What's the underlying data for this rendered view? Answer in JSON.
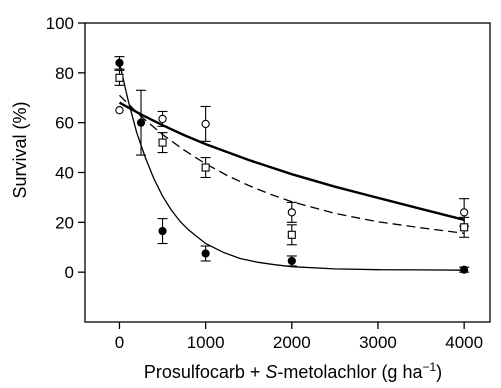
{
  "chart_data": {
    "type": "scatter",
    "title": "",
    "xlabel": "Prosulfocarb + S-metolachlor (g ha⁻¹)",
    "xlabel_parts": {
      "pre": "Prosulfocarb + ",
      "italic": "S",
      "mid": "-metolachlor (g ha",
      "sup": "−1",
      "post": ")"
    },
    "ylabel": "Survival (%)",
    "xlim": [
      -400,
      4300
    ],
    "ylim": [
      -20,
      100
    ],
    "xticks": [
      0,
      1000,
      2000,
      3000,
      4000
    ],
    "xtick_labels": [
      "0",
      "1000",
      "2000",
      "3000",
      "4000"
    ],
    "yticks": [
      0,
      20,
      40,
      60,
      80,
      100
    ],
    "ytick_labels": [
      "0",
      "20",
      "40",
      "60",
      "80",
      "100"
    ],
    "grid": false,
    "series": [
      {
        "marker": "filled-circle",
        "line_style": "solid-thin",
        "color": "#000000",
        "points": [
          {
            "x": 0,
            "y": 84,
            "err": 2.5
          },
          {
            "x": 250,
            "y": 60,
            "err": 13
          },
          {
            "x": 500,
            "y": 16.5,
            "err": 5
          },
          {
            "x": 1000,
            "y": 7.5,
            "err": 3
          },
          {
            "x": 2000,
            "y": 4.5,
            "err": 2
          },
          {
            "x": 4000,
            "y": 1,
            "err": 1
          }
        ],
        "fit_curve": [
          {
            "x": 0,
            "y": 84
          },
          {
            "x": 100,
            "y": 69
          },
          {
            "x": 200,
            "y": 56
          },
          {
            "x": 300,
            "y": 46
          },
          {
            "x": 400,
            "y": 37.5
          },
          {
            "x": 500,
            "y": 30.5
          },
          {
            "x": 600,
            "y": 25
          },
          {
            "x": 700,
            "y": 20.5
          },
          {
            "x": 800,
            "y": 17
          },
          {
            "x": 1000,
            "y": 11.5
          },
          {
            "x": 1200,
            "y": 8
          },
          {
            "x": 1400,
            "y": 5.5
          },
          {
            "x": 1600,
            "y": 4
          },
          {
            "x": 1800,
            "y": 3
          },
          {
            "x": 2000,
            "y": 2.2
          },
          {
            "x": 2500,
            "y": 1.3
          },
          {
            "x": 3000,
            "y": 1
          },
          {
            "x": 3500,
            "y": 0.9
          },
          {
            "x": 4000,
            "y": 0.8
          }
        ]
      },
      {
        "marker": "open-square",
        "line_style": "dashed",
        "color": "#000000",
        "points": [
          {
            "x": 0,
            "y": 78,
            "err": 3
          },
          {
            "x": 500,
            "y": 52,
            "err": 4
          },
          {
            "x": 1000,
            "y": 42,
            "err": 4
          },
          {
            "x": 2000,
            "y": 15,
            "err": 4
          },
          {
            "x": 4000,
            "y": 18,
            "err": 4
          }
        ],
        "fit_curve": [
          {
            "x": 0,
            "y": 71
          },
          {
            "x": 250,
            "y": 62.5
          },
          {
            "x": 500,
            "y": 55.2
          },
          {
            "x": 750,
            "y": 49
          },
          {
            "x": 1000,
            "y": 43.5
          },
          {
            "x": 1250,
            "y": 38.8
          },
          {
            "x": 1500,
            "y": 34.8
          },
          {
            "x": 1750,
            "y": 31.3
          },
          {
            "x": 2000,
            "y": 28.3
          },
          {
            "x": 2500,
            "y": 23.6
          },
          {
            "x": 3000,
            "y": 20.2
          },
          {
            "x": 3500,
            "y": 17.8
          },
          {
            "x": 4000,
            "y": 15.6
          }
        ]
      },
      {
        "marker": "open-circle",
        "line_style": "solid-thick",
        "color": "#000000",
        "points": [
          {
            "x": 0,
            "y": 65,
            "err": 0
          },
          {
            "x": 500,
            "y": 61.5,
            "err": 3
          },
          {
            "x": 1000,
            "y": 59.5,
            "err": 7
          },
          {
            "x": 2000,
            "y": 24,
            "err": 4
          },
          {
            "x": 4000,
            "y": 24,
            "err": 5.5
          }
        ],
        "fit_curve": [
          {
            "x": 0,
            "y": 68
          },
          {
            "x": 250,
            "y": 63.3
          },
          {
            "x": 500,
            "y": 59
          },
          {
            "x": 750,
            "y": 55
          },
          {
            "x": 1000,
            "y": 51.4
          },
          {
            "x": 1500,
            "y": 45
          },
          {
            "x": 2000,
            "y": 39.3
          },
          {
            "x": 2500,
            "y": 34.3
          },
          {
            "x": 3000,
            "y": 29.8
          },
          {
            "x": 3500,
            "y": 25.4
          },
          {
            "x": 4000,
            "y": 21
          }
        ]
      }
    ]
  }
}
